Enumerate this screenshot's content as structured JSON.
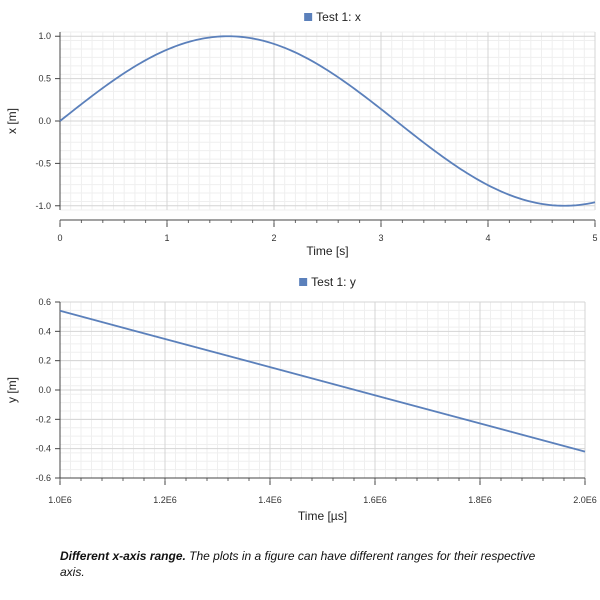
{
  "charts": [
    {
      "type": "line",
      "legend": "Test 1: x",
      "xlabel": "Time [s]",
      "ylabel": "x [m]",
      "xlim": [
        0,
        5
      ],
      "ylim": [
        -1.05,
        1.05
      ],
      "xticks": [
        "0",
        "1",
        "2",
        "3",
        "4",
        "5"
      ],
      "yticks": [
        "1.0",
        "0.5",
        "0.0",
        "-0.5",
        "-1.0"
      ],
      "ytick_values": [
        1.0,
        0.5,
        0.0,
        -0.5,
        -1.0
      ],
      "series": [
        {
          "name": "Test 1: x",
          "function": "sin(t)",
          "x_range": [
            0,
            5
          ]
        }
      ],
      "color": "#5b80bb"
    },
    {
      "type": "line",
      "legend": "Test 1: y",
      "xlabel": "Time [µs]",
      "ylabel": "y [m]",
      "xlim": [
        1000000,
        2000000
      ],
      "ylim": [
        -0.6,
        0.6
      ],
      "xticks": [
        "1.0E6",
        "1.2E6",
        "1.4E6",
        "1.6E6",
        "1.8E6",
        "2.0E6"
      ],
      "xtick_values": [
        1000000,
        1200000,
        1400000,
        1600000,
        1800000,
        2000000
      ],
      "yticks": [
        "0.6",
        "0.4",
        "0.2",
        "0.0",
        "-0.2",
        "-0.4",
        "-0.6"
      ],
      "ytick_values": [
        0.6,
        0.4,
        0.2,
        0.0,
        -0.2,
        -0.4,
        -0.6
      ],
      "series": [
        {
          "name": "Test 1: y",
          "x": [
            1000000,
            2000000
          ],
          "y": [
            0.54,
            -0.42
          ]
        }
      ],
      "color": "#5b80bb"
    }
  ],
  "caption": {
    "bold": "Different x-axis range.",
    "text": " The plots in a figure can have different ranges for their respective axis."
  }
}
